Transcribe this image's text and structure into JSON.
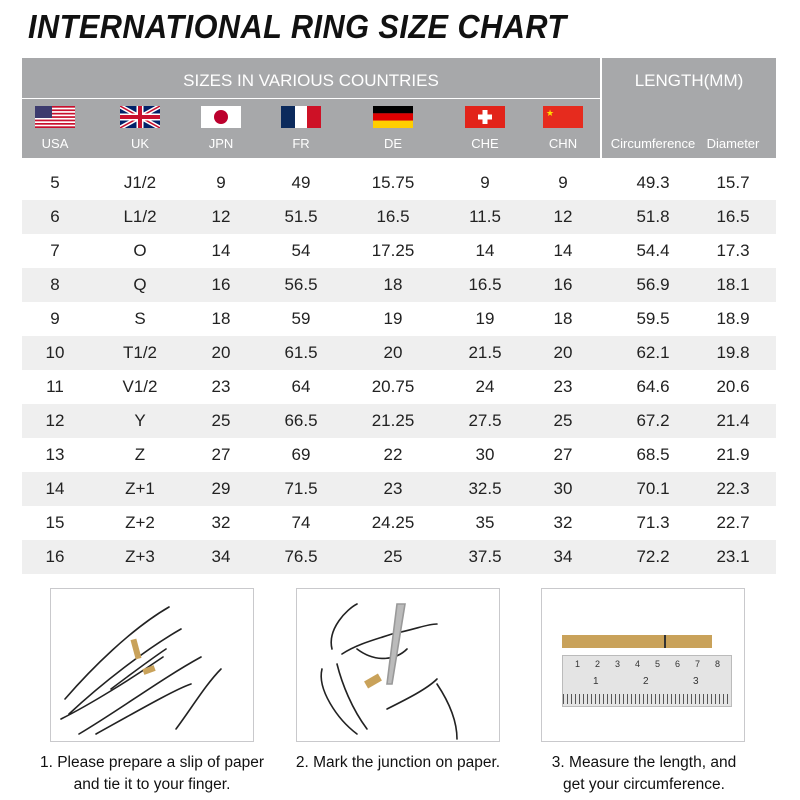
{
  "title": "INTERNATIONAL RING SIZE CHART",
  "header": {
    "sizes_label": "SIZES IN VARIOUS COUNTRIES",
    "length_label": "LENGTH(MM)",
    "countries": [
      {
        "code": "USA",
        "flag": "usa-flag"
      },
      {
        "code": "UK",
        "flag": "uk-flag"
      },
      {
        "code": "JPN",
        "flag": "japan-flag"
      },
      {
        "code": "FR",
        "flag": "france-flag"
      },
      {
        "code": "DE",
        "flag": "germany-flag"
      },
      {
        "code": "CHE",
        "flag": "switzerland-flag"
      },
      {
        "code": "CHN",
        "flag": "china-flag"
      }
    ],
    "length_cols": [
      "Circumference",
      "Diameter"
    ]
  },
  "rows": [
    [
      "5",
      "J1/2",
      "9",
      "49",
      "15.75",
      "9",
      "9",
      "49.3",
      "15.7"
    ],
    [
      "6",
      "L1/2",
      "12",
      "51.5",
      "16.5",
      "11.5",
      "12",
      "51.8",
      "16.5"
    ],
    [
      "7",
      "O",
      "14",
      "54",
      "17.25",
      "14",
      "14",
      "54.4",
      "17.3"
    ],
    [
      "8",
      "Q",
      "16",
      "56.5",
      "18",
      "16.5",
      "16",
      "56.9",
      "18.1"
    ],
    [
      "9",
      "S",
      "18",
      "59",
      "19",
      "19",
      "18",
      "59.5",
      "18.9"
    ],
    [
      "10",
      "T1/2",
      "20",
      "61.5",
      "20",
      "21.5",
      "20",
      "62.1",
      "19.8"
    ],
    [
      "11",
      "V1/2",
      "23",
      "64",
      "20.75",
      "24",
      "23",
      "64.6",
      "20.6"
    ],
    [
      "12",
      "Y",
      "25",
      "66.5",
      "21.25",
      "27.5",
      "25",
      "67.2",
      "21.4"
    ],
    [
      "13",
      "Z",
      "27",
      "69",
      "22",
      "30",
      "27",
      "68.5",
      "21.9"
    ],
    [
      "14",
      "Z+1",
      "29",
      "71.5",
      "23",
      "32.5",
      "30",
      "70.1",
      "22.3"
    ],
    [
      "15",
      "Z+2",
      "32",
      "74",
      "24.25",
      "35",
      "32",
      "71.3",
      "22.7"
    ],
    [
      "16",
      "Z+3",
      "34",
      "76.5",
      "25",
      "37.5",
      "34",
      "72.2",
      "23.1"
    ]
  ],
  "steps": [
    {
      "line1": "1. Please prepare a slip of paper",
      "line2": "and tie it to your finger."
    },
    {
      "line1": "2. Mark the junction on paper.",
      "line2": ""
    },
    {
      "line1": "3. Measure the length, and",
      "line2": "get your circumference."
    }
  ],
  "ruler": {
    "cm_ticks": [
      "1",
      "2",
      "3",
      "4",
      "5",
      "6",
      "7",
      "8"
    ],
    "inch_ticks": [
      "1",
      "2",
      "3"
    ]
  },
  "colors": {
    "header_bg": "#a7a8aa",
    "alt_row": "#efefef",
    "paper": "#c9a25a"
  }
}
